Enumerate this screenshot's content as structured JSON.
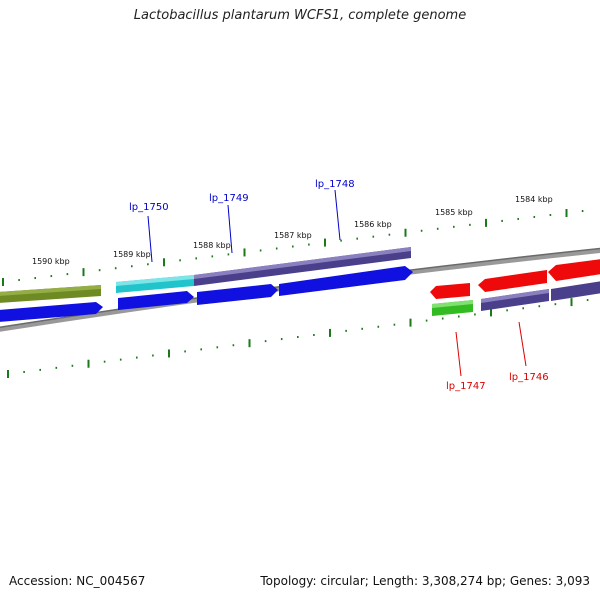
{
  "title": "Lactobacillus plantarum WCFS1, complete genome",
  "accession": "Accession: NC_004567",
  "summary": "Topology: circular; Length: 3,308,274 bp; Genes: 3,093",
  "kbp_labels": [
    "1590 kbp",
    "1589 kbp",
    "1588 kbp",
    "1587 kbp",
    "1586 kbp",
    "1585 kbp",
    "1584 kbp"
  ],
  "genes": [
    {
      "label": "lp_1750",
      "strand": "plus"
    },
    {
      "label": "lp_1749",
      "strand": "plus"
    },
    {
      "label": "lp_1748",
      "strand": "plus"
    },
    {
      "label": "lp_1747",
      "strand": "minus"
    },
    {
      "label": "lp_1746",
      "strand": "minus"
    }
  ],
  "colors": {
    "plus_label": "#0000cc",
    "minus_label": "#dd0000",
    "tick": "#1a7a1a",
    "backbone": "#808080",
    "olive": "#6e8a22",
    "cyan": "#22c4cc",
    "slate": "#4a3f8a",
    "blue": "#1010e0",
    "red": "#ee0a0a",
    "green": "#33bb22"
  }
}
